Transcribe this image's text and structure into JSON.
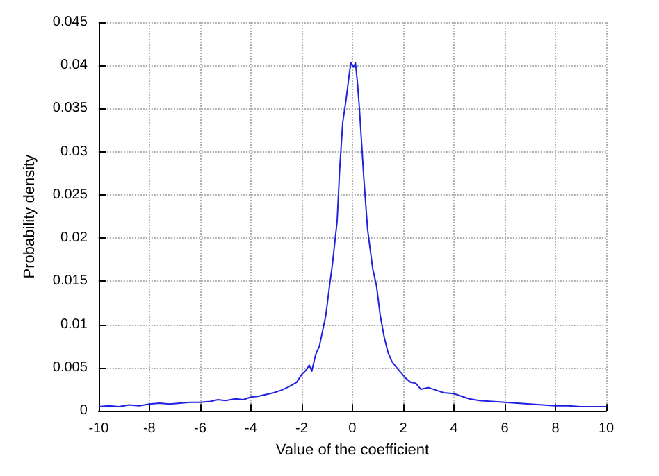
{
  "chart_data": {
    "type": "line",
    "xlabel": "Value of the coefficient",
    "ylabel": "Probability density",
    "x": [
      -10,
      -9.6,
      -9.2,
      -8.8,
      -8.4,
      -8,
      -7.6,
      -7.2,
      -6.8,
      -6.4,
      -6,
      -5.6,
      -5.3,
      -5,
      -4.6,
      -4.3,
      -4,
      -3.7,
      -3.4,
      -3.1,
      -2.8,
      -2.5,
      -2.2,
      -2,
      -1.8,
      -1.7,
      -1.6,
      -1.45,
      -1.3,
      -1.2,
      -1.05,
      -0.9,
      -0.79,
      -0.6,
      -0.5,
      -0.38,
      -0.25,
      -0.1,
      -0.05,
      0.05,
      0.12,
      0.2,
      0.28,
      0.45,
      0.6,
      0.8,
      0.95,
      1.1,
      1.25,
      1.4,
      1.56,
      1.8,
      2.1,
      2.3,
      2.5,
      2.7,
      3,
      3.3,
      3.6,
      4,
      4.3,
      4.6,
      5,
      5.5,
      6,
      6.5,
      7,
      7.5,
      8,
      8.5,
      9,
      9.5,
      10
    ],
    "series": [
      {
        "color": "#2020e0",
        "values": [
          0.0005,
          0.0006,
          0.0005,
          0.0007,
          0.0006,
          0.0008,
          0.0009,
          0.0008,
          0.0009,
          0.001,
          0.001,
          0.0011,
          0.0013,
          0.0012,
          0.0014,
          0.0013,
          0.0016,
          0.0017,
          0.0019,
          0.0021,
          0.0024,
          0.0028,
          0.0033,
          0.0042,
          0.0048,
          0.0053,
          0.0046,
          0.0065,
          0.0075,
          0.0089,
          0.011,
          0.0145,
          0.0169,
          0.022,
          0.028,
          0.0334,
          0.036,
          0.0395,
          0.0403,
          0.0398,
          0.0403,
          0.038,
          0.0349,
          0.027,
          0.021,
          0.0165,
          0.0145,
          0.011,
          0.0086,
          0.0068,
          0.0057,
          0.0048,
          0.0038,
          0.0033,
          0.0032,
          0.0025,
          0.0027,
          0.0024,
          0.0021,
          0.002,
          0.0017,
          0.0014,
          0.0012,
          0.0011,
          0.001,
          0.0009,
          0.0008,
          0.0007,
          0.0006,
          0.0006,
          0.0005,
          0.0005,
          0.0005
        ]
      }
    ],
    "xlim": [
      -10,
      10
    ],
    "xticks": [
      -10,
      -8,
      -6,
      -4,
      -2,
      0,
      2,
      4,
      6,
      8,
      10
    ],
    "ylim": [
      0,
      0.045
    ],
    "yticks": [
      0,
      0.005,
      0.01,
      0.015,
      0.02,
      0.025,
      0.03,
      0.035,
      0.04,
      0.045
    ],
    "grid": true,
    "marker": "none",
    "line_style": "solid"
  }
}
